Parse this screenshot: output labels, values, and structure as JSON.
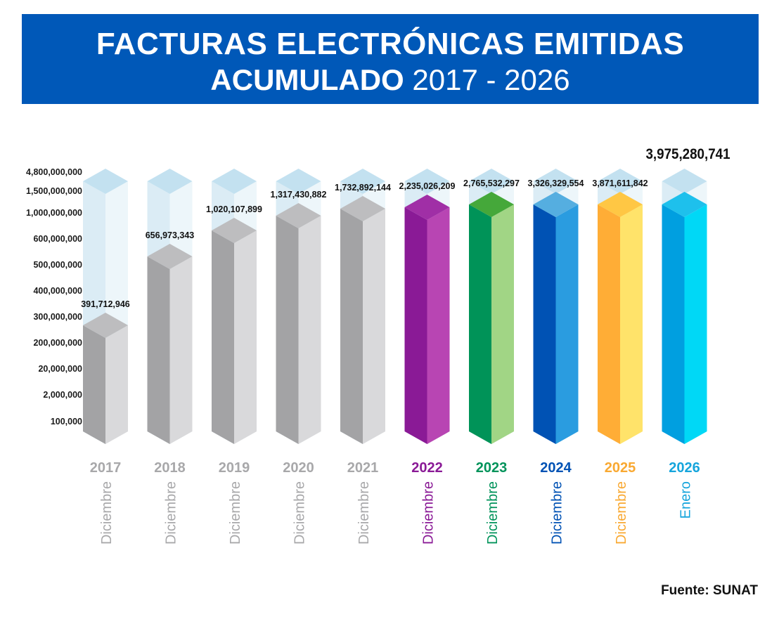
{
  "header": {
    "title_line1": "FACTURAS ELECTRÓNICAS EMITIDAS",
    "title_line2_bold": "ACUMULADO",
    "title_line2_range": "2017 - 2026"
  },
  "source": "Fuente: SUNAT",
  "chart_data": {
    "type": "bar",
    "title": "FACTURAS ELECTRÓNICAS EMITIDAS ACUMULADO 2017 - 2026",
    "xlabel": "",
    "ylabel": "",
    "scale": "non-linear (custom tick spacing)",
    "y_ticks": [
      "4,800,000,000",
      "1,500,000,000",
      "1,000,000,000",
      "600,000,000",
      "500,000,000",
      "400,000,000",
      "300,000,000",
      "200,000,000",
      "20,000,000",
      "2,000,000",
      "100,000"
    ],
    "y_tick_values": [
      4800000000,
      1500000000,
      1000000000,
      600000000,
      500000000,
      400000000,
      300000000,
      200000000,
      20000000,
      2000000,
      100000
    ],
    "categories": [
      "2017",
      "2018",
      "2019",
      "2020",
      "2021",
      "2022",
      "2023",
      "2024",
      "2025",
      "2026"
    ],
    "periods": [
      "Diciembre",
      "Diciembre",
      "Diciembre",
      "Diciembre",
      "Diciembre",
      "Diciembre",
      "Diciembre",
      "Diciembre",
      "Diciembre",
      "Enero"
    ],
    "values": [
      391712946,
      656973343,
      1020107899,
      1317430882,
      1732892144,
      2235026209,
      2765532297,
      3326329554,
      3871611842,
      3975280741
    ],
    "value_labels": [
      "391,712,946",
      "656,973,343",
      "1,020,107,899",
      "1,317,430,882",
      "1,732,892,144",
      "2,235,026,209",
      "2,765,532,297",
      "3,326,329,554",
      "3,871,611,842",
      "3,975,280,741"
    ],
    "colors": {
      "gray": {
        "left": "#a3a3a5",
        "right": "#d9d9db",
        "top": "#bdbdbf",
        "label": "#a8a8aa"
      },
      "2022": {
        "left": "#8a1a96",
        "right": "#b845b3",
        "top": "#a02fa6",
        "label": "#8a1a96"
      },
      "2023": {
        "left": "#009358",
        "right": "#a1d585",
        "top": "#45a83a",
        "label": "#00935a"
      },
      "2024": {
        "left": "#0052b4",
        "right": "#2a9ce0",
        "top": "#55aee0",
        "label": "#0052b4"
      },
      "2025": {
        "left": "#ffad36",
        "right": "#ffe36a",
        "top": "#ffc744",
        "label": "#f9a932"
      },
      "2026": {
        "left": "#009fe0",
        "right": "#00d8f6",
        "top": "#1ec0ec",
        "label": "#16a5dc"
      },
      "ghost": {
        "left": "#dbecf5",
        "right": "#edf6fa",
        "top": "#c3e1f0"
      }
    }
  }
}
